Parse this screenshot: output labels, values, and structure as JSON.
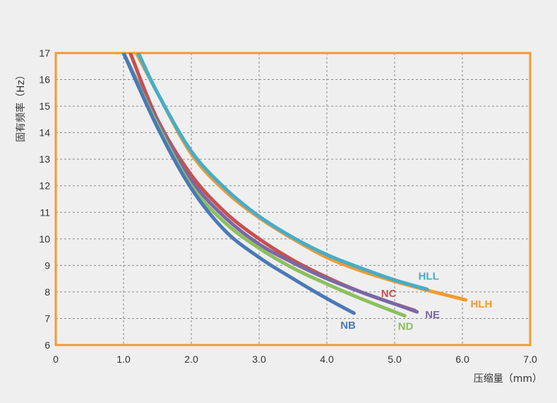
{
  "chart_data": {
    "type": "line",
    "title": "",
    "xlabel": "压缩量（mm）",
    "ylabel": "固有频率（Hz）",
    "xlim": [
      0,
      7.0
    ],
    "ylim": [
      6,
      17
    ],
    "x_ticks": [
      "0",
      "1.0",
      "2.0",
      "3.0",
      "4.0",
      "5.0",
      "6.0",
      "7.0"
    ],
    "y_ticks": [
      "6",
      "7",
      "8",
      "9",
      "10",
      "11",
      "12",
      "13",
      "14",
      "15",
      "16",
      "17"
    ],
    "grid": true,
    "frame_color": "#f39a32",
    "background_color": "#efefef",
    "series": [
      {
        "name": "HLH",
        "color": "#f39a32",
        "x": [
          1.19,
          1.5,
          2.0,
          2.5,
          3.0,
          3.5,
          4.0,
          4.5,
          5.0,
          5.5,
          6.05
        ],
        "y": [
          17.0,
          15.5,
          13.2,
          11.8,
          10.8,
          10.0,
          9.3,
          8.8,
          8.4,
          8.05,
          7.7
        ]
      },
      {
        "name": "HLL",
        "color": "#45adc8",
        "x": [
          1.22,
          1.5,
          2.0,
          2.5,
          3.0,
          3.5,
          4.0,
          4.5,
          5.0,
          5.48
        ],
        "y": [
          17.0,
          15.5,
          13.3,
          11.9,
          10.85,
          10.05,
          9.4,
          8.9,
          8.45,
          8.1
        ]
      },
      {
        "name": "NC",
        "color": "#c7504f",
        "x": [
          1.1,
          1.5,
          2.0,
          2.5,
          3.0,
          3.5,
          4.0,
          4.5,
          5.0,
          5.3
        ],
        "y": [
          17.0,
          14.5,
          12.4,
          11.0,
          10.0,
          9.2,
          8.55,
          8.0,
          7.55,
          7.3
        ]
      },
      {
        "name": "NE",
        "color": "#7a68a6",
        "x": [
          1.0,
          1.5,
          2.0,
          2.5,
          3.0,
          3.5,
          4.0,
          4.5,
          5.0,
          5.33
        ],
        "y": [
          17.0,
          14.4,
          12.2,
          10.8,
          9.8,
          9.1,
          8.5,
          8.0,
          7.55,
          7.25
        ]
      },
      {
        "name": "ND",
        "color": "#8cbf5f",
        "x": [
          1.0,
          1.5,
          2.0,
          2.5,
          3.0,
          3.5,
          4.0,
          4.5,
          5.15
        ],
        "y": [
          17.0,
          14.3,
          12.0,
          10.6,
          9.65,
          8.9,
          8.3,
          7.75,
          7.1
        ]
      },
      {
        "name": "NB",
        "color": "#4a79b7",
        "x": [
          1.0,
          1.5,
          2.0,
          2.5,
          3.0,
          3.5,
          4.0,
          4.4
        ],
        "y": [
          17.0,
          14.2,
          11.9,
          10.3,
          9.3,
          8.5,
          7.75,
          7.2
        ]
      }
    ]
  }
}
